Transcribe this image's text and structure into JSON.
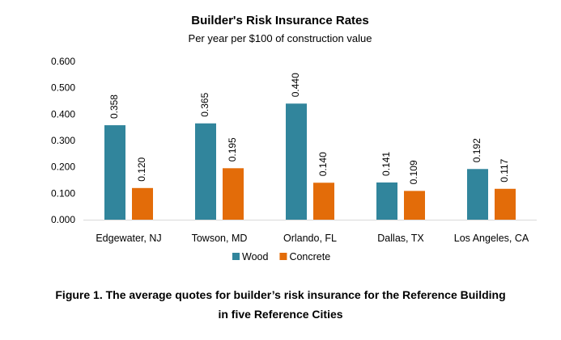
{
  "chart_data": {
    "type": "bar",
    "title": "Builder's Risk Insurance Rates",
    "subtitle": "Per year per $100 of construction value",
    "categories": [
      "Edgewater, NJ",
      "Towson, MD",
      "Orlando, FL",
      "Dallas, TX",
      "Los Angeles, CA"
    ],
    "series": [
      {
        "name": "Wood",
        "color": "#31859c",
        "values": [
          0.358,
          0.365,
          0.44,
          0.141,
          0.192
        ],
        "labels": [
          "0.358",
          "0.365",
          "0.440",
          "0.141",
          "0.192"
        ]
      },
      {
        "name": "Concrete",
        "color": "#e36c09",
        "values": [
          0.12,
          0.195,
          0.14,
          0.109,
          0.117
        ],
        "labels": [
          "0.120",
          "0.195",
          "0.140",
          "0.109",
          "0.117"
        ]
      }
    ],
    "ylim": [
      0,
      0.6
    ],
    "yticks": [
      "0.000",
      "0.100",
      "0.200",
      "0.300",
      "0.400",
      "0.500",
      "0.600"
    ],
    "xlabel": "",
    "ylabel": "",
    "grid": false,
    "legend_position": "bottom"
  },
  "caption": {
    "line1": "Figure 1. The average quotes for builder’s risk insurance for the Reference Building",
    "line2": "in five Reference Cities"
  }
}
